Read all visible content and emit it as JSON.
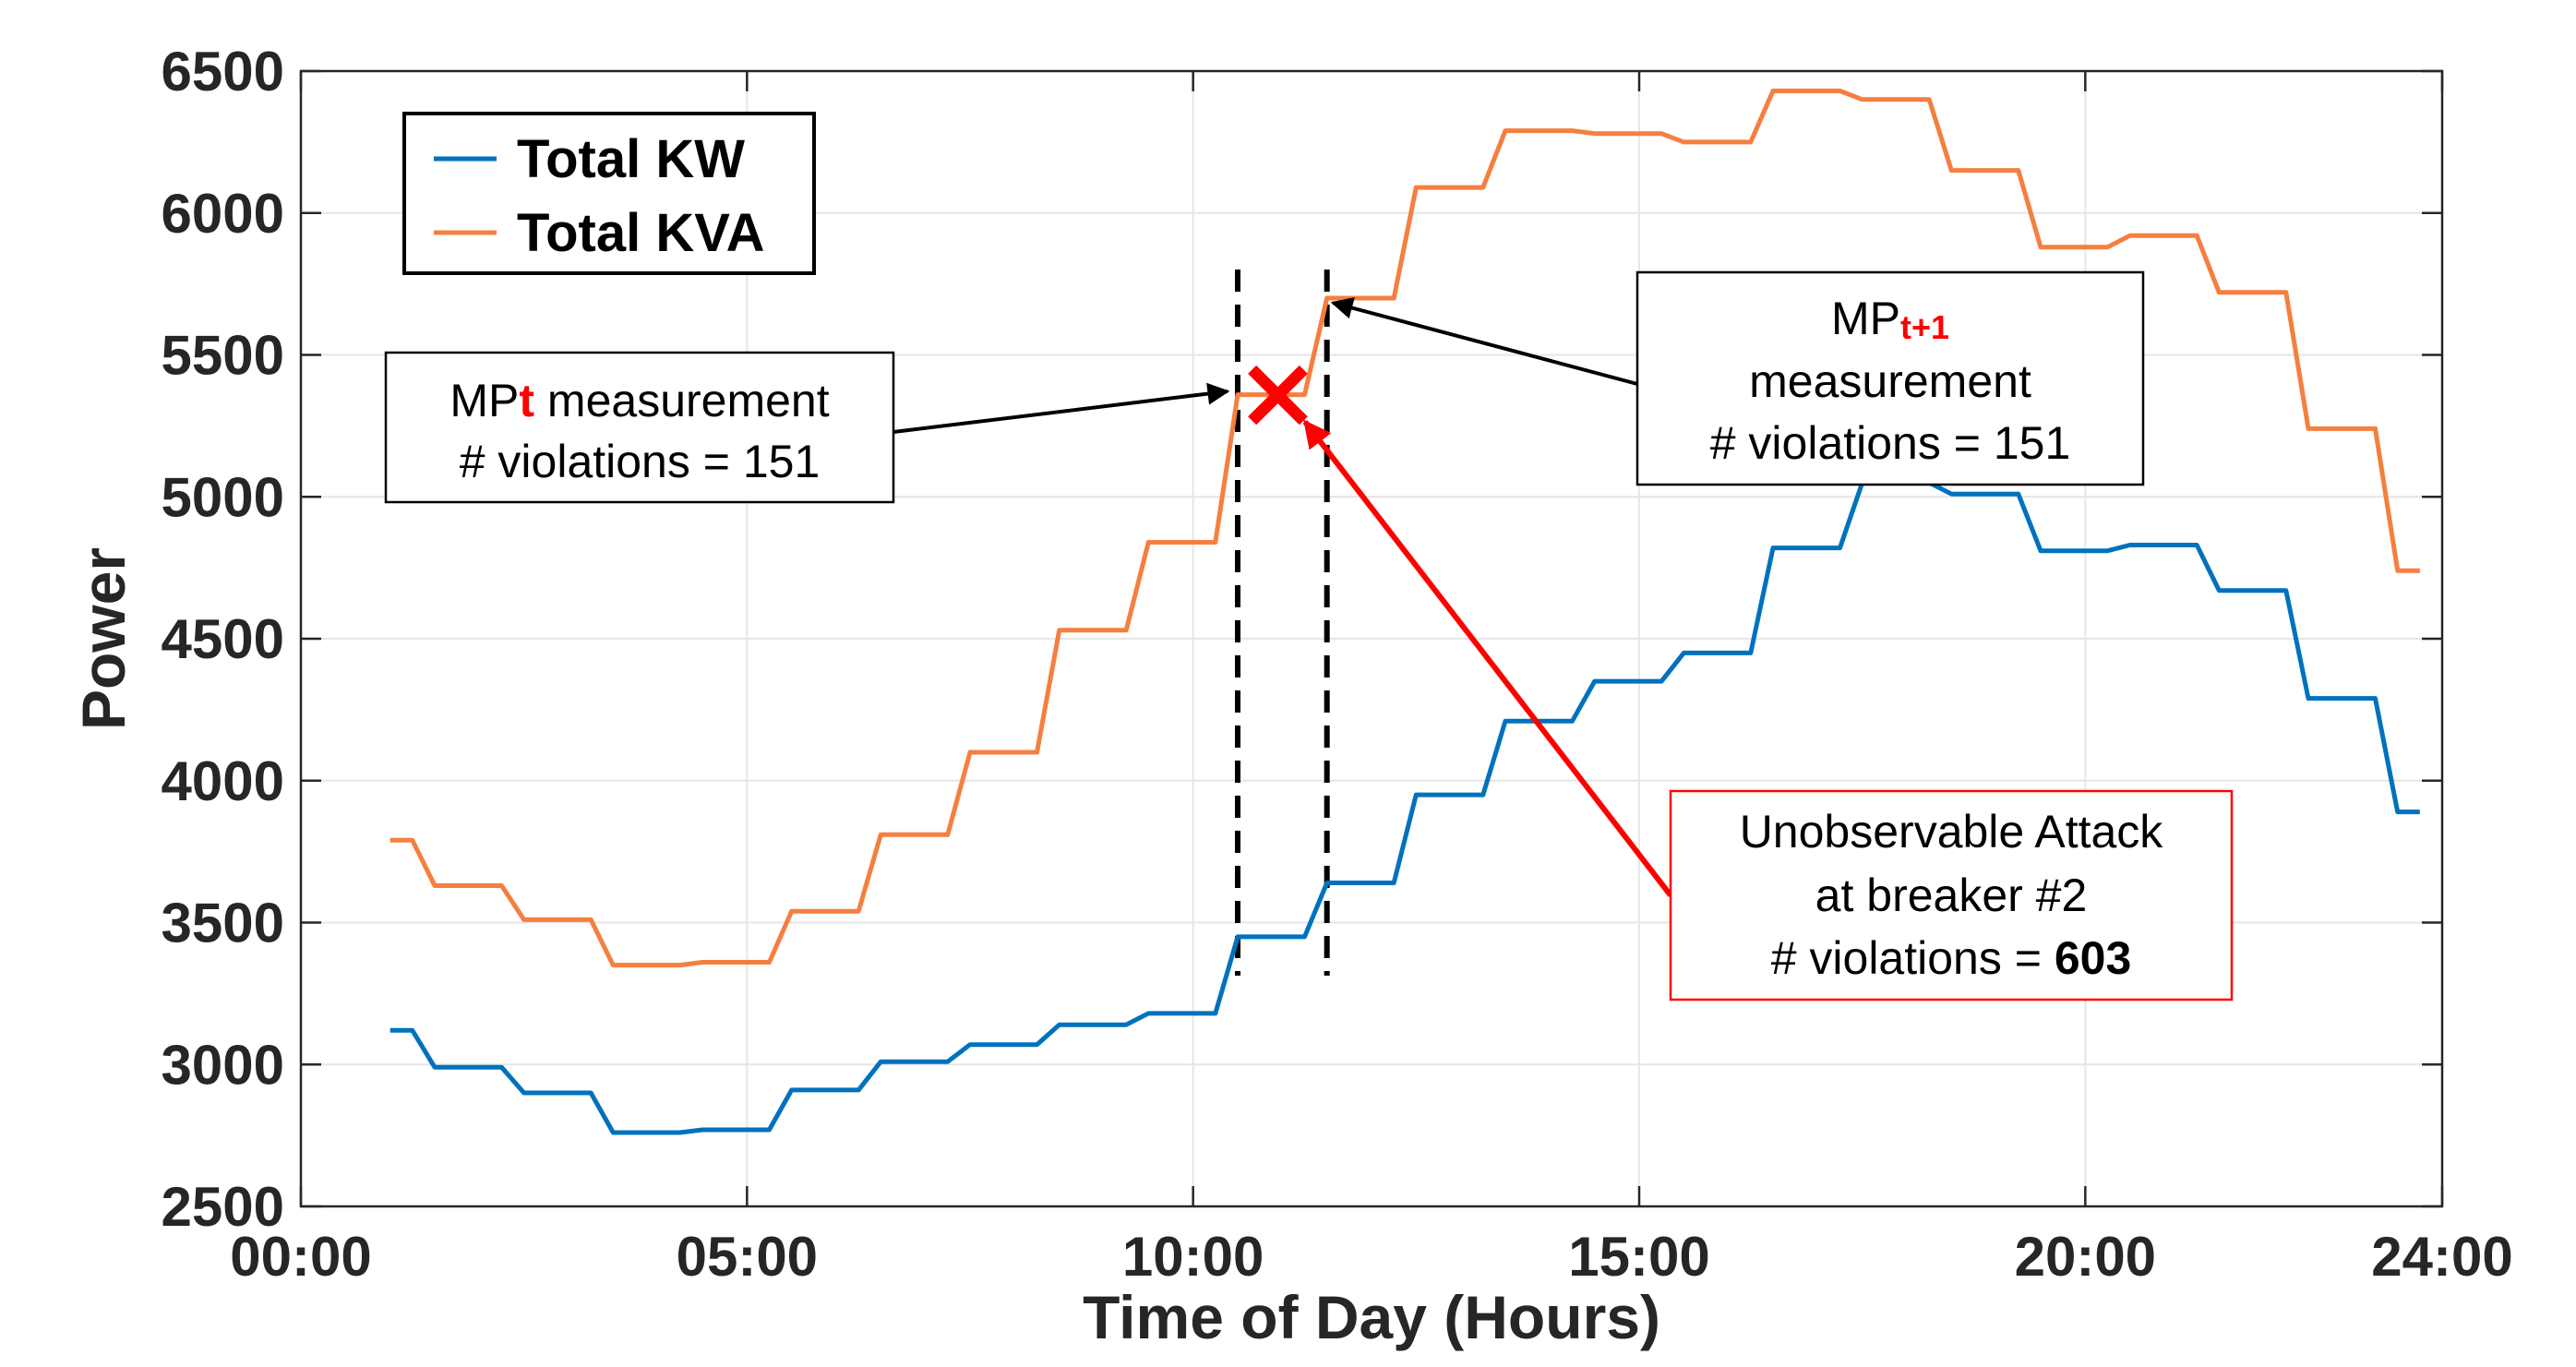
{
  "chart_data": {
    "type": "line",
    "xlabel": "Time of Day (Hours)",
    "ylabel": "Power",
    "xlim": [
      0,
      24
    ],
    "ylim": [
      2500,
      6500
    ],
    "xticks": [
      0,
      5,
      10,
      15,
      20,
      24
    ],
    "xtick_labels": [
      "00:00",
      "05:00",
      "10:00",
      "15:00",
      "20:00",
      "24:00"
    ],
    "yticks": [
      2500,
      3000,
      3500,
      4000,
      4500,
      5000,
      5500,
      6000,
      6500
    ],
    "ytick_labels": [
      "2500",
      "3000",
      "3500",
      "4000",
      "4500",
      "5000",
      "5500",
      "6000",
      "6500"
    ],
    "grid": true,
    "legend_position": "top-left",
    "series": [
      {
        "name": "Total KW",
        "color": "#0072BD",
        "x": [
          1.0,
          1.25,
          1.5,
          2.25,
          2.5,
          3.25,
          3.5,
          4.25,
          4.5,
          5.25,
          5.5,
          6.25,
          6.5,
          7.25,
          7.5,
          8.25,
          8.5,
          9.25,
          9.5,
          10.25,
          10.5,
          11.25,
          11.5,
          12.25,
          12.5,
          13.25,
          13.5,
          14.25,
          14.5,
          15.25,
          15.5,
          16.25,
          16.5,
          17.25,
          17.5,
          18.25,
          18.5,
          19.25,
          19.5,
          20.25,
          20.5,
          21.25,
          21.5,
          22.25,
          22.5,
          23.25,
          23.5,
          23.75
        ],
        "values": [
          3120,
          3120,
          2990,
          2990,
          2900,
          2900,
          2760,
          2760,
          2770,
          2770,
          2910,
          2910,
          3010,
          3010,
          3070,
          3070,
          3140,
          3140,
          3180,
          3180,
          3450,
          3450,
          3640,
          3640,
          3950,
          3950,
          4210,
          4210,
          4350,
          4350,
          4450,
          4450,
          4820,
          4820,
          5050,
          5050,
          5010,
          5010,
          4810,
          4810,
          4830,
          4830,
          4670,
          4670,
          4290,
          4290,
          3890,
          3890
        ]
      },
      {
        "name": "Total KVA",
        "color": "#F57F3F",
        "x": [
          1.0,
          1.25,
          1.5,
          2.25,
          2.5,
          3.25,
          3.5,
          4.25,
          4.5,
          5.25,
          5.5,
          6.25,
          6.5,
          7.25,
          7.5,
          8.25,
          8.5,
          9.25,
          9.5,
          10.25,
          10.5,
          11.25,
          11.5,
          12.25,
          12.5,
          13.25,
          13.5,
          14.25,
          14.5,
          15.25,
          15.5,
          16.25,
          16.5,
          17.25,
          17.5,
          18.25,
          18.5,
          19.25,
          19.5,
          20.25,
          20.5,
          21.25,
          21.5,
          22.25,
          22.5,
          23.25,
          23.5,
          23.75
        ],
        "values": [
          3790,
          3790,
          3630,
          3630,
          3510,
          3510,
          3350,
          3350,
          3360,
          3360,
          3540,
          3540,
          3810,
          3810,
          4100,
          4100,
          4530,
          4530,
          4840,
          4840,
          5360,
          5360,
          5700,
          5700,
          6090,
          6090,
          6290,
          6290,
          6280,
          6280,
          6250,
          6250,
          6430,
          6430,
          6400,
          6400,
          6150,
          6150,
          5880,
          5880,
          5920,
          5920,
          5720,
          5720,
          5240,
          5240,
          4740,
          4740
        ]
      }
    ],
    "vlines": [
      10.5,
      11.5
    ],
    "attack_marker": {
      "x": 10.95,
      "y": 5370,
      "symbol": "×"
    },
    "annotations": {
      "mp_t": {
        "line1_prefix": "MP",
        "line1_sub": "t",
        "line1_suffix": " measurement",
        "line2": "# violations = 151"
      },
      "mp_t1": {
        "line1_prefix": "MP",
        "line1_sub": "t+1",
        "line2": "measurement",
        "line3": "# violations = 151"
      },
      "attack": {
        "line1": "Unobservable Attack",
        "line2": "at breaker #2",
        "line3_prefix": "# violations = ",
        "line3_value": "603"
      }
    },
    "colors": {
      "annotation_red": "#ff0000",
      "vline": "#000000",
      "grid": "#e6e6e6",
      "axis": "#262626"
    }
  }
}
